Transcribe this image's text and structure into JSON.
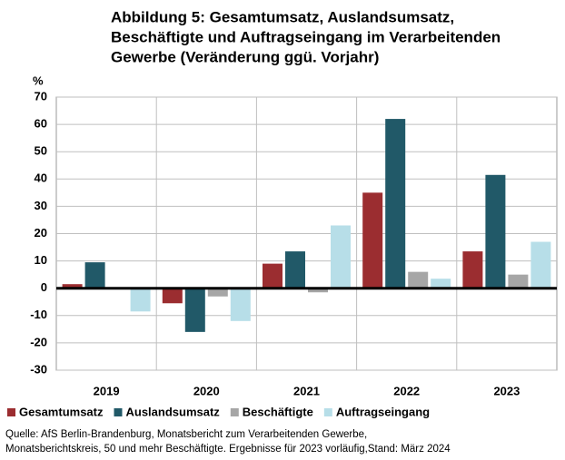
{
  "chart_data": {
    "type": "bar",
    "title": [
      "Abbildung 5: Gesamtumsatz, Auslandsumsatz,",
      "Beschäftigte und Auftragseingang im Verarbeitenden",
      "Gewerbe (Veränderung ggü. Vorjahr)"
    ],
    "y_axis_label": "%",
    "categories": [
      "2019",
      "2020",
      "2021",
      "2022",
      "2023"
    ],
    "series": [
      {
        "name": "Gesamtumsatz",
        "color": "#9b2d30",
        "values": [
          1.5,
          -5.5,
          9,
          35,
          13.5
        ]
      },
      {
        "name": "Auslandsumsatz",
        "color": "#215968",
        "values": [
          9.5,
          -16,
          13.5,
          62,
          41.5
        ]
      },
      {
        "name": "Beschäftigte",
        "color": "#a6a6a6",
        "values": [
          0,
          -3,
          -1.5,
          6,
          5
        ]
      },
      {
        "name": "Auftragseingang",
        "color": "#b7dee8",
        "values": [
          -8.5,
          -12,
          23,
          3.5,
          17
        ]
      }
    ],
    "ylim": [
      -30,
      70
    ],
    "yticks": [
      -30,
      -20,
      -10,
      0,
      10,
      20,
      30,
      40,
      50,
      60,
      70
    ],
    "grid": true,
    "source": [
      "Quelle: AfS Berlin-Brandenburg, Monatsbericht zum Verarbeitenden Gewerbe,",
      "Monatsberichtskreis, 50 und mehr Beschäftigte. Ergebnisse für 2023 vorläufig,Stand: März 2024"
    ]
  }
}
